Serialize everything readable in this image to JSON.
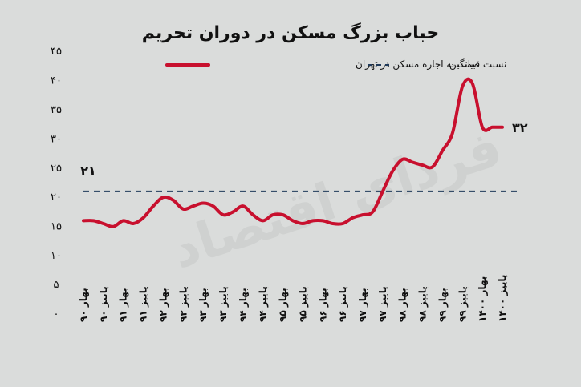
{
  "chart_data": {
    "type": "line",
    "title": "حباب بزرگ مسکن در دوران تحریم",
    "watermark": "فردای اقتصاد",
    "categories": [
      "بهار ۹۰",
      "پاییز ۹۰",
      "بهار ۹۱",
      "پاییز ۹۱",
      "بهار ۹۲",
      "پاییز ۹۲",
      "بهار ۹۳",
      "پاییز ۹۳",
      "بهار ۹۴",
      "پاییز ۹۴",
      "بهار ۹۵",
      "پاییز ۹۵",
      "بهار ۹۶",
      "پاییز ۹۶",
      "بهار ۹۷",
      "پاییز ۹۷",
      "بهار ۹۸",
      "پاییز ۹۸",
      "بهار ۹۹",
      "پاییز ۹۹",
      "بهار ۱۴۰۰",
      "پاییز ۱۴۰۰"
    ],
    "series": [
      {
        "name": "نسبت قیمت به اجاره مسکن در تهران",
        "color": "#c8102e",
        "x": [
          0,
          0.5,
          1,
          1.5,
          2,
          2.5,
          3,
          3.5,
          4,
          4.5,
          5,
          5.5,
          6,
          6.5,
          7,
          7.5,
          8,
          8.5,
          9,
          9.5,
          10,
          10.5,
          11,
          11.5,
          12,
          12.5,
          13,
          13.5,
          14,
          14.5,
          15,
          15.5,
          16,
          16.5,
          17,
          17.5,
          18,
          18.5,
          19,
          19.5,
          20,
          20.5,
          21
        ],
        "values": [
          16,
          16,
          15.5,
          15,
          16,
          15.5,
          16.5,
          18.5,
          20,
          19.5,
          18,
          18.5,
          19,
          18.5,
          17,
          17.5,
          18.5,
          17,
          16,
          17,
          17,
          16,
          15.5,
          16,
          16,
          15.5,
          15.5,
          16.5,
          17,
          17.5,
          21,
          24.5,
          26.5,
          26,
          25.5,
          25.2,
          28,
          31,
          39,
          39.5,
          32,
          32,
          32
        ]
      },
      {
        "name": "میانگین",
        "color": "#1f3a5a",
        "x": [
          0,
          21
        ],
        "values": [
          21,
          21
        ]
      }
    ],
    "y_ticks": [
      "۰",
      "۵",
      "۱۰",
      "۱۵",
      "۲۰",
      "۲۵",
      "۳۰",
      "۳۵",
      "۴۰",
      "۴۵"
    ],
    "ylim": [
      0,
      45
    ],
    "data_labels": [
      {
        "text": "۳۲",
        "x": 21,
        "y": 32
      },
      {
        "text": "۲۱",
        "x": 0,
        "y": 21
      }
    ],
    "grid": false,
    "legend_position": "top"
  }
}
